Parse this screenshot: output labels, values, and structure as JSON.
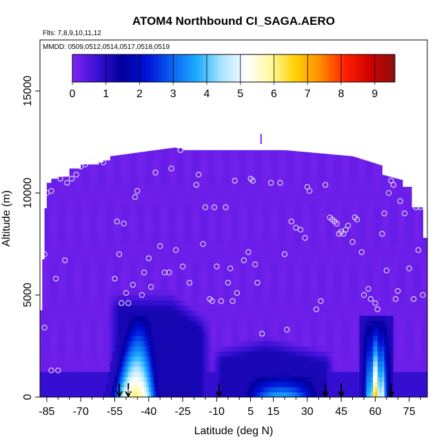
{
  "chart_data": {
    "type": "heatmap",
    "title": "ATOM4 Northbound CI_SAGA.AERO",
    "subtitle_flights": "Flts: 7,8,9,10,11,12",
    "subtitle_dates": "MMDD: 0509,0512,0514,0517,0518,0519",
    "xlabel": "Latitude (deg N)",
    "ylabel": "Altitude (m)",
    "xlim": [
      -88,
      83
    ],
    "ylim": [
      0,
      17500
    ],
    "x_ticks": [
      -85,
      -70,
      -55,
      -40,
      -25,
      -10,
      5,
      15,
      30,
      45,
      60,
      75
    ],
    "x_ticks_minor": [
      -80,
      -75,
      -65,
      -60,
      -50,
      -45,
      -35,
      -30,
      -20,
      -15,
      -5,
      0,
      10,
      20,
      25,
      35,
      40,
      50,
      55,
      65,
      70,
      80
    ],
    "y_ticks": [
      0,
      5000,
      10000,
      15000
    ],
    "colorbar": {
      "ticks": [
        0,
        1,
        2,
        3,
        4,
        5,
        6,
        7,
        8,
        9
      ],
      "range": [
        0,
        9.6
      ],
      "colors": [
        "#7f24f0",
        "#3a10d6",
        "#00009a",
        "#0010d8",
        "#0a60f0",
        "#1aaaff",
        "#a8e4ff",
        "#ffffff",
        "#fff9a0",
        "#ffd000",
        "#ff8a00",
        "#ff2000",
        "#cf0000",
        "#8b1010"
      ]
    },
    "background_value": 0.2,
    "value_regions": [
      {
        "name": "southern surface plume",
        "lat_range": [
          -56,
          -29
        ],
        "alt_range": [
          0,
          4300
        ],
        "peak_value": 5.2
      },
      {
        "name": "southern blue layer",
        "lat_range": [
          -58,
          -12
        ],
        "alt_range": [
          0,
          5200
        ],
        "peak_value": 1.2
      },
      {
        "name": "tropical boundary layer",
        "lat_range": [
          1,
          36
        ],
        "alt_range": [
          0,
          1300
        ],
        "peak_value": 3.0
      },
      {
        "name": "tropical blue layer",
        "lat_range": [
          -12,
          42
        ],
        "alt_range": [
          0,
          3000
        ],
        "peak_value": 1.0
      },
      {
        "name": "northern surface plume",
        "lat_range": [
          54,
          67
        ],
        "alt_range": [
          0,
          4000
        ],
        "peak_value": 6.0
      }
    ],
    "arrow_latitudes": [
      -53,
      -49,
      -9,
      38,
      45,
      67
    ],
    "sample_points": [
      [
        -86,
        7000
      ],
      [
        -86,
        3400
      ],
      [
        -85,
        10000
      ],
      [
        -83,
        10100
      ],
      [
        -83,
        1300
      ],
      [
        -81,
        5800
      ],
      [
        -80,
        1300
      ],
      [
        -79,
        10700
      ],
      [
        -77,
        6700
      ],
      [
        -76,
        10500
      ],
      [
        -74,
        10700
      ],
      [
        -72,
        10900
      ],
      [
        -70,
        11300
      ],
      [
        -68,
        11400
      ],
      [
        -65,
        11600
      ],
      [
        -60,
        11500
      ],
      [
        -55,
        5800
      ],
      [
        -54,
        8600
      ],
      [
        -53,
        7000
      ],
      [
        -52,
        4600
      ],
      [
        -51,
        8500
      ],
      [
        -50,
        5100
      ],
      [
        -49,
        4600
      ],
      [
        -48,
        300
      ],
      [
        -47,
        5500
      ],
      [
        -46,
        9800
      ],
      [
        -45,
        10100
      ],
      [
        -43,
        5000
      ],
      [
        -42,
        6100
      ],
      [
        -40,
        6800
      ],
      [
        -39,
        5400
      ],
      [
        -37,
        11000
      ],
      [
        -35,
        7400
      ],
      [
        -33,
        6100
      ],
      [
        -31,
        6100
      ],
      [
        -30,
        11200
      ],
      [
        -28,
        7200
      ],
      [
        -26,
        12100
      ],
      [
        -25,
        6400
      ],
      [
        -22,
        5600
      ],
      [
        -19,
        10400
      ],
      [
        -18,
        10900
      ],
      [
        -16,
        7500
      ],
      [
        -15,
        9300
      ],
      [
        -13,
        4800
      ],
      [
        -12,
        4700
      ],
      [
        -11,
        9300
      ],
      [
        -10,
        6400
      ],
      [
        -8,
        4700
      ],
      [
        -6,
        9300
      ],
      [
        -5,
        5600
      ],
      [
        -4,
        6300
      ],
      [
        -3,
        4700
      ],
      [
        -2,
        10600
      ],
      [
        -1,
        5100
      ],
      [
        2,
        6700
      ],
      [
        4,
        7100
      ],
      [
        5,
        10700
      ],
      [
        6,
        10600
      ],
      [
        7,
        6500
      ],
      [
        8,
        5600
      ],
      [
        10,
        3100
      ],
      [
        14,
        10500
      ],
      [
        18,
        10500
      ],
      [
        20,
        7000
      ],
      [
        21,
        3300
      ],
      [
        23,
        8600
      ],
      [
        25,
        8300
      ],
      [
        27,
        8200
      ],
      [
        29,
        7800
      ],
      [
        30,
        10300
      ],
      [
        31,
        10100
      ],
      [
        34,
        4300
      ],
      [
        36,
        4700
      ],
      [
        38,
        10400
      ],
      [
        40,
        8800
      ],
      [
        41,
        8700
      ],
      [
        42,
        8600
      ],
      [
        43,
        8500
      ],
      [
        44,
        8000
      ],
      [
        45,
        8100
      ],
      [
        46,
        8000
      ],
      [
        47,
        8200
      ],
      [
        48,
        8400
      ],
      [
        50,
        7600
      ],
      [
        51,
        8800
      ],
      [
        52,
        8700
      ],
      [
        54,
        7100
      ],
      [
        55,
        5000
      ],
      [
        57,
        5300
      ],
      [
        58,
        4800
      ],
      [
        60,
        4600
      ],
      [
        61,
        4300
      ],
      [
        63,
        8000
      ],
      [
        64,
        9000
      ],
      [
        65,
        6200
      ],
      [
        66,
        10000
      ],
      [
        67,
        10600
      ],
      [
        68,
        10400
      ],
      [
        69,
        4800
      ],
      [
        70,
        5200
      ],
      [
        71,
        9600
      ],
      [
        72,
        10800
      ],
      [
        73,
        9000
      ],
      [
        75,
        6300
      ],
      [
        77,
        4800
      ],
      [
        78,
        9300
      ],
      [
        79,
        7200
      ],
      [
        80,
        9300
      ],
      [
        81,
        5000
      ]
    ]
  }
}
